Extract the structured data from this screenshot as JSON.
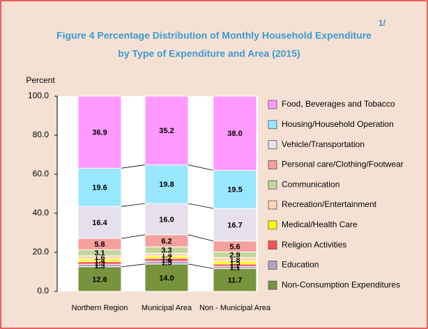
{
  "chart_data": {
    "type": "stacked_bar",
    "title": "Figure  4  Percentage Distribution of Monthly Household Expenditure",
    "subtitle": "by Type of Expenditure and Area (2015)",
    "footnote": "1/",
    "y_label": "Percent",
    "categories": [
      "Northern Region",
      "Municipal Area",
      "Non - Municipal Area"
    ],
    "ylim": [
      0,
      100
    ],
    "yticks": [
      {
        "value": 0,
        "label": "0.0"
      },
      {
        "value": 20,
        "label": "20.0"
      },
      {
        "value": 40,
        "label": "40.0"
      },
      {
        "value": 60,
        "label": "60.0"
      },
      {
        "value": 80,
        "label": "80.0"
      },
      {
        "value": 100,
        "label": "100.0"
      }
    ],
    "series": [
      {
        "name": "Non-Consumption Expenditures",
        "color": "#77933c",
        "values": [
          12.6,
          14,
          11.7
        ],
        "value_labels": [
          "12.6",
          "14.0",
          "11.7"
        ]
      },
      {
        "name": "Education",
        "color": "#b3a2c7",
        "values": [
          1.3,
          1.5,
          1.1
        ],
        "value_labels": [
          "1.3",
          "1.5",
          "1.1"
        ]
      },
      {
        "name": "Religion Activities",
        "color": "#ff5050",
        "values": [
          1.3,
          1.4,
          1.2
        ],
        "value_labels": [
          "1.3",
          "1.4",
          "1.2"
        ]
      },
      {
        "name": "Medical/Health Care",
        "color": "#ffff00",
        "values": [
          1.4,
          1.2,
          1.5
        ],
        "value_labels": [
          "1.4",
          "1.2",
          "1.5"
        ]
      },
      {
        "name": "Recreation/Entertainment",
        "color": "#fcd5b5",
        "values": [
          1.6,
          1.4,
          1.8
        ],
        "value_labels": [
          "1.6",
          "1.4",
          "1.8"
        ]
      },
      {
        "name": "Communication",
        "color": "#c3d69b",
        "values": [
          3.1,
          3.3,
          2.9
        ],
        "value_labels": [
          "3.1",
          "3.3",
          "2.9"
        ]
      },
      {
        "name": "Personal care/Clothing/Footwear",
        "color": "#f4a09c",
        "values": [
          5.8,
          6.2,
          5.6
        ],
        "value_labels": [
          "5.8",
          "6.2",
          "5.6"
        ]
      },
      {
        "name": "Vehicle/Transportation",
        "color": "#e6e0ec",
        "values": [
          16.4,
          16,
          16.7
        ],
        "value_labels": [
          "16.4",
          "16.0",
          "16.7"
        ]
      },
      {
        "name": "Housing/Household Operation",
        "color": "#99e6ff",
        "values": [
          19.6,
          19.8,
          19.5
        ],
        "value_labels": [
          "19.6",
          "19.8",
          "19.5"
        ]
      },
      {
        "name": "Food, Beverages and Tobacco",
        "color": "#ff99ff",
        "values": [
          36.9,
          35.2,
          38
        ],
        "value_labels": [
          "36.9",
          "35.2",
          "38.0"
        ]
      }
    ]
  }
}
